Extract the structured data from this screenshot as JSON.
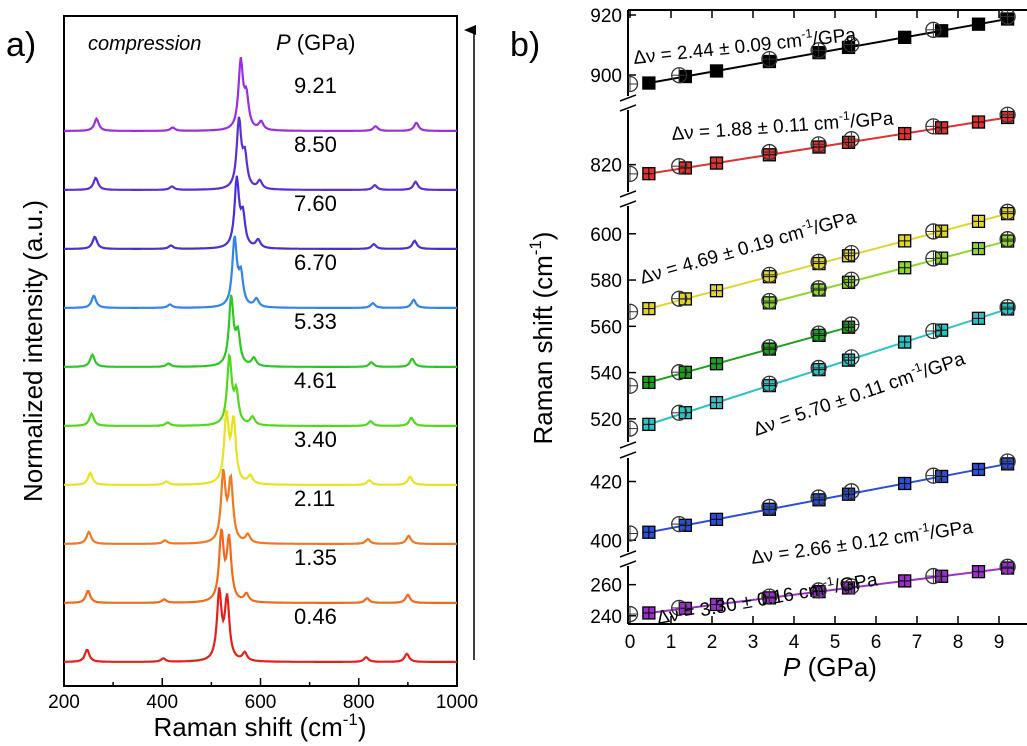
{
  "panel_a": {
    "label": "a)",
    "header_left": "compression",
    "header_right_symbol": "P",
    "header_right_unit": " (GPa)"
  },
  "panel_b": {
    "label": "b)"
  },
  "chart_data": [
    {
      "type": "line",
      "panel": "a",
      "xlabel": "Raman shift (cm⁻¹)",
      "ylabel": "Normalized intensity (a.u.)",
      "xlim": [
        200,
        1000
      ],
      "xticks": [
        200,
        400,
        600,
        800,
        1000
      ],
      "y_axis_arrow": true,
      "peaks": {
        "positions_at_0.46": [
          247,
          402,
          516,
          532,
          568,
          815,
          898
        ],
        "relative_heights": [
          0.18,
          0.05,
          1.0,
          0.9,
          0.12,
          0.07,
          0.12
        ]
      },
      "series": [
        {
          "name": "0.46",
          "pressure": 0.46,
          "color": "#e3211b"
        },
        {
          "name": "1.35",
          "pressure": 1.35,
          "color": "#f06a1d"
        },
        {
          "name": "2.11",
          "pressure": 2.11,
          "color": "#ee7a1f"
        },
        {
          "name": "3.40",
          "pressure": 3.4,
          "color": "#e8e21f"
        },
        {
          "name": "4.61",
          "pressure": 4.61,
          "color": "#52d81a"
        },
        {
          "name": "5.33",
          "pressure": 5.33,
          "color": "#2cc822"
        },
        {
          "name": "6.70",
          "pressure": 6.7,
          "color": "#2f86e8"
        },
        {
          "name": "7.60",
          "pressure": 7.6,
          "color": "#4a2fd9"
        },
        {
          "name": "8.50",
          "pressure": 8.5,
          "color": "#5b2fd0"
        },
        {
          "name": "9.21",
          "pressure": 9.21,
          "color": "#9b2fe0"
        }
      ]
    },
    {
      "type": "scatter",
      "panel": "b",
      "xlabel_symbol": "P",
      "xlabel_unit": " (GPa)",
      "ylabel": "Raman shift (cm⁻¹)",
      "xlim": [
        0,
        9.3
      ],
      "xticks": [
        0,
        1,
        2,
        3,
        4,
        5,
        6,
        7,
        8,
        9
      ],
      "segments": [
        {
          "ylim": [
            893,
            921
          ],
          "yticks": [
            900,
            920
          ]
        },
        {
          "ylim": [
            812,
            836
          ],
          "yticks": [
            820
          ]
        },
        {
          "ylim": [
            510,
            612
          ],
          "yticks": [
            520,
            540,
            560,
            580,
            600
          ]
        },
        {
          "ylim": [
            396,
            428
          ],
          "yticks": [
            400,
            420
          ]
        },
        {
          "ylim": [
            236,
            272
          ],
          "yticks": [
            240,
            260
          ]
        }
      ],
      "compression_points": [
        0.46,
        1.35,
        2.11,
        3.4,
        4.61,
        5.33,
        6.7,
        7.6,
        8.5,
        9.21
      ],
      "decompression_points": [
        0.0,
        1.2,
        3.4,
        4.6,
        5.4,
        7.4,
        9.21
      ],
      "annotations": [
        {
          "text": "Δν = 2.44 ± 0.09 cm⁻¹/GPa"
        },
        {
          "text": "Δν = 1.88 ± 0.11 cm⁻¹/GPa"
        },
        {
          "text": "Δν = 4.69 ± 0.19 cm⁻¹/GPa"
        },
        {
          "text": "Δν = 5.70 ± 0.11 cm⁻¹/GPa"
        },
        {
          "text": "Δν = 2.66 ± 0.12 cm⁻¹/GPa"
        },
        {
          "text": "Δν = 3.30 ± 0.16 cm⁻¹/GPa"
        }
      ],
      "series": [
        {
          "segment": 0,
          "color": "#000000",
          "intercept": 896.2,
          "slope": 2.44
        },
        {
          "segment": 1,
          "color": "#e03030",
          "intercept": 816.5,
          "slope": 1.88
        },
        {
          "segment": 2,
          "color": "#e0d52a",
          "intercept": 565.5,
          "slope": 4.69
        },
        {
          "segment": 2,
          "color": "#8ed82a",
          "intercept": 554.5,
          "slope": 4.6,
          "x_start": 3.4
        },
        {
          "segment": 2,
          "color": "#1aa31a",
          "intercept": 533.5,
          "slope": 4.9,
          "x_end": 5.4
        },
        {
          "segment": 2,
          "color": "#28c4c4",
          "intercept": 515.0,
          "slope": 5.7
        },
        {
          "segment": 3,
          "color": "#2a4fd8",
          "intercept": 401.5,
          "slope": 2.66
        },
        {
          "segment": 4,
          "color": "#9b2fcc",
          "intercept": 240.3,
          "slope": 3.3
        }
      ]
    }
  ]
}
